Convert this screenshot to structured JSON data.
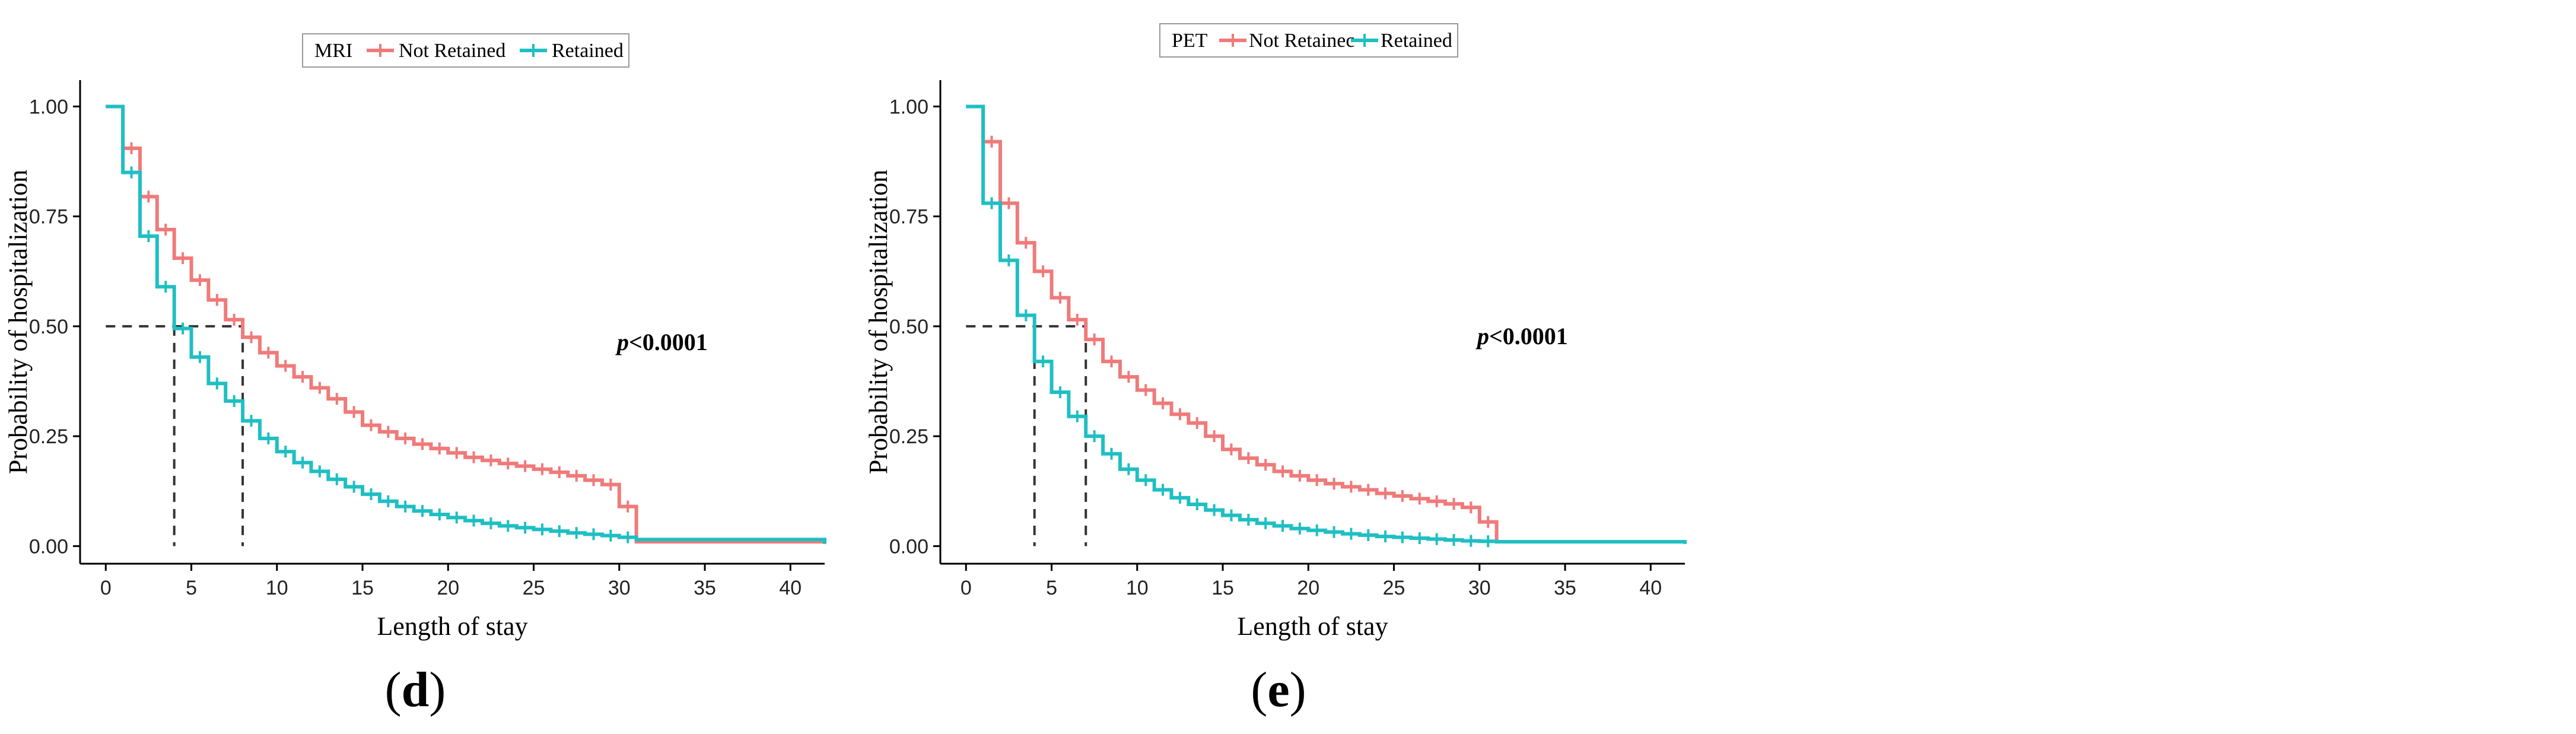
{
  "colors": {
    "not_retained": "#F07A7A",
    "retained": "#1FBFC3",
    "axis": "#000000",
    "reference": "#333333"
  },
  "chart_data": [
    {
      "type": "line",
      "panel_label": "d",
      "legend_title": "MRI",
      "xlabel": "Length of stay",
      "ylabel": "Probability of hospitalization",
      "annotation_italic": "p",
      "annotation_rest": "<0.0001",
      "xlim": [
        -1.5,
        42
      ],
      "ylim": [
        -0.04,
        1.06
      ],
      "xticks": [
        0,
        5,
        10,
        15,
        20,
        25,
        30,
        35,
        40
      ],
      "yticks": [
        0.0,
        0.25,
        0.5,
        0.75,
        1.0
      ],
      "ytick_labels": [
        "0.00",
        "0.25",
        "0.50",
        "0.75",
        "1.00"
      ],
      "median_line": {
        "y": 0.5,
        "x_values": [
          4,
          8
        ]
      },
      "series": [
        {
          "name": "Not Retained",
          "color_key": "not_retained",
          "x": [
            0,
            1,
            2,
            3,
            4,
            5,
            6,
            7,
            8,
            9,
            10,
            11,
            12,
            13,
            14,
            15,
            16,
            17,
            18,
            19,
            20,
            21,
            22,
            23,
            24,
            25,
            26,
            27,
            28,
            29,
            30,
            31,
            42
          ],
          "y": [
            1.0,
            0.905,
            0.795,
            0.72,
            0.655,
            0.605,
            0.56,
            0.515,
            0.475,
            0.44,
            0.41,
            0.385,
            0.36,
            0.335,
            0.305,
            0.275,
            0.26,
            0.245,
            0.232,
            0.222,
            0.212,
            0.202,
            0.195,
            0.188,
            0.182,
            0.175,
            0.168,
            0.16,
            0.15,
            0.14,
            0.09,
            0.01,
            0.005
          ],
          "censor_marks": true
        },
        {
          "name": "Retained",
          "color_key": "retained",
          "x": [
            0,
            1,
            2,
            3,
            4,
            5,
            6,
            7,
            8,
            9,
            10,
            11,
            12,
            13,
            14,
            15,
            16,
            17,
            18,
            19,
            20,
            21,
            22,
            23,
            24,
            25,
            26,
            27,
            28,
            29,
            30,
            31,
            42
          ],
          "y": [
            1.0,
            0.85,
            0.705,
            0.59,
            0.495,
            0.43,
            0.37,
            0.33,
            0.285,
            0.245,
            0.215,
            0.19,
            0.17,
            0.152,
            0.135,
            0.118,
            0.102,
            0.09,
            0.08,
            0.072,
            0.065,
            0.058,
            0.052,
            0.046,
            0.042,
            0.038,
            0.034,
            0.03,
            0.027,
            0.024,
            0.02,
            0.015,
            0.005
          ],
          "censor_marks": true
        }
      ]
    },
    {
      "type": "line",
      "panel_label": "e",
      "legend_title": "PET",
      "xlabel": "Length of stay",
      "ylabel": "Probability of hospitalization",
      "annotation_italic": "p",
      "annotation_rest": "<0.0001",
      "xlim": [
        -1.5,
        42
      ],
      "ylim": [
        -0.04,
        1.06
      ],
      "xticks": [
        0,
        5,
        10,
        15,
        20,
        25,
        30,
        35,
        40
      ],
      "yticks": [
        0.0,
        0.25,
        0.5,
        0.75,
        1.0
      ],
      "ytick_labels": [
        "0.00",
        "0.25",
        "0.50",
        "0.75",
        "1.00"
      ],
      "median_line": {
        "y": 0.5,
        "x_values": [
          4,
          7
        ]
      },
      "series": [
        {
          "name": "Not Retainec",
          "color_key": "not_retained",
          "x": [
            0,
            1,
            2,
            3,
            4,
            5,
            6,
            7,
            8,
            9,
            10,
            11,
            12,
            13,
            14,
            15,
            16,
            17,
            18,
            19,
            20,
            21,
            22,
            23,
            24,
            25,
            26,
            27,
            28,
            29,
            30,
            31,
            42
          ],
          "y": [
            1.0,
            0.92,
            0.78,
            0.69,
            0.625,
            0.565,
            0.515,
            0.47,
            0.42,
            0.385,
            0.355,
            0.325,
            0.3,
            0.28,
            0.25,
            0.22,
            0.2,
            0.185,
            0.17,
            0.16,
            0.15,
            0.142,
            0.135,
            0.128,
            0.12,
            0.114,
            0.108,
            0.102,
            0.096,
            0.088,
            0.055,
            0.01,
            0.005
          ],
          "censor_marks": true
        },
        {
          "name": "Retained",
          "color_key": "retained",
          "x": [
            0,
            1,
            2,
            3,
            4,
            5,
            6,
            7,
            8,
            9,
            10,
            11,
            12,
            13,
            14,
            15,
            16,
            17,
            18,
            19,
            20,
            21,
            22,
            23,
            24,
            25,
            26,
            27,
            28,
            29,
            30,
            31,
            42
          ],
          "y": [
            1.0,
            0.78,
            0.65,
            0.525,
            0.42,
            0.35,
            0.295,
            0.25,
            0.21,
            0.175,
            0.15,
            0.128,
            0.11,
            0.095,
            0.082,
            0.07,
            0.06,
            0.052,
            0.046,
            0.04,
            0.036,
            0.032,
            0.028,
            0.025,
            0.022,
            0.02,
            0.018,
            0.016,
            0.014,
            0.012,
            0.011,
            0.01,
            0.005
          ],
          "censor_marks": true
        }
      ]
    }
  ]
}
